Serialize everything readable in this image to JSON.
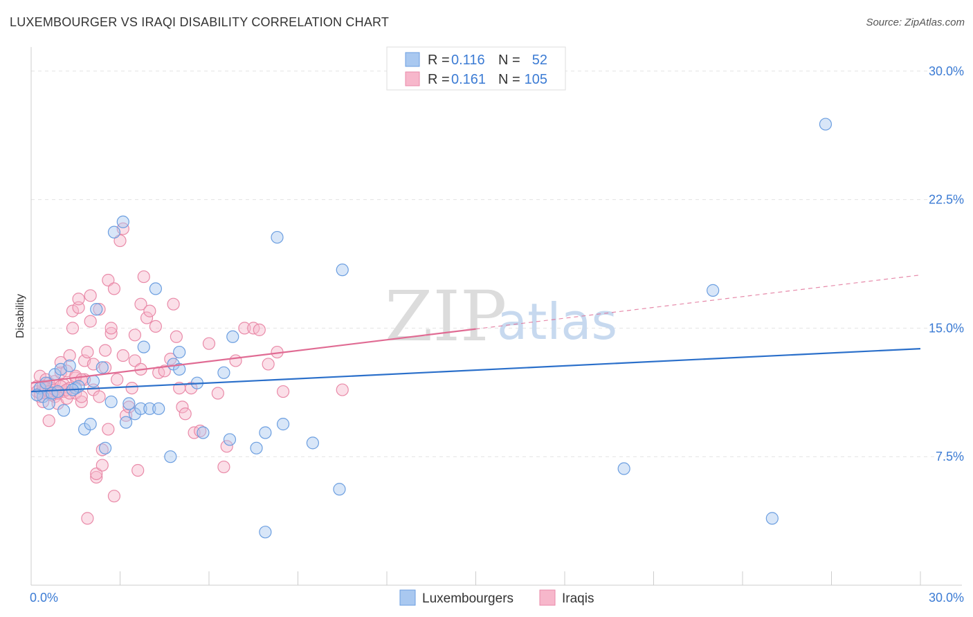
{
  "header": {
    "title": "LUXEMBOURGER VS IRAQI DISABILITY CORRELATION CHART",
    "source": "Source: ZipAtlas.com"
  },
  "colors": {
    "blue_fill": "#a9c8f0",
    "blue_stroke": "#6b9ee0",
    "blue_line": "#2a6fca",
    "pink_fill": "#f7b7cb",
    "pink_stroke": "#e98aa8",
    "pink_line": "#e06b93",
    "tick_text": "#3b7bd4"
  },
  "legend": {
    "r_label": "R =",
    "n_label": "N =",
    "rows": [
      {
        "r": "0.116",
        "n": "52"
      },
      {
        "r": "0.161",
        "n": "105"
      }
    ]
  },
  "watermark": {
    "zip": "ZIP",
    "atlas": "atlas"
  },
  "chart_data": {
    "type": "scatter",
    "ylabel": "Disability",
    "xlim": [
      0,
      30
    ],
    "ylim": [
      0,
      31
    ],
    "x_tick_labels": [
      "0.0%",
      "30.0%"
    ],
    "y_ticks": [
      {
        "value": 7.5,
        "label": "7.5%"
      },
      {
        "value": 15.0,
        "label": "15.0%"
      },
      {
        "value": 22.5,
        "label": "22.5%"
      },
      {
        "value": 30.0,
        "label": "30.0%"
      }
    ],
    "grid": true,
    "legend_position": "top-center",
    "series": [
      {
        "name": "Luxembourgers",
        "color": "#a9c8f0",
        "trend": {
          "x0": 0,
          "y0": 11.3,
          "x1": 30,
          "y1": 13.8,
          "dashed_from": null
        },
        "points": [
          [
            0.3,
            11.5
          ],
          [
            0.4,
            11.0
          ],
          [
            0.5,
            11.8
          ],
          [
            0.6,
            10.6
          ],
          [
            0.7,
            11.2
          ],
          [
            0.8,
            12.3
          ],
          [
            1.0,
            12.6
          ],
          [
            1.1,
            10.2
          ],
          [
            1.3,
            12.8
          ],
          [
            1.5,
            11.5
          ],
          [
            1.6,
            11.6
          ],
          [
            1.8,
            9.1
          ],
          [
            2.0,
            9.4
          ],
          [
            2.1,
            11.9
          ],
          [
            2.2,
            16.1
          ],
          [
            2.4,
            12.7
          ],
          [
            2.5,
            8.0
          ],
          [
            2.7,
            10.7
          ],
          [
            2.8,
            20.6
          ],
          [
            3.1,
            21.2
          ],
          [
            3.2,
            9.5
          ],
          [
            3.3,
            10.6
          ],
          [
            3.5,
            10.0
          ],
          [
            3.7,
            10.3
          ],
          [
            3.8,
            13.9
          ],
          [
            4.0,
            10.3
          ],
          [
            4.2,
            17.3
          ],
          [
            4.3,
            10.3
          ],
          [
            4.7,
            7.5
          ],
          [
            4.8,
            12.9
          ],
          [
            5.0,
            13.6
          ],
          [
            5.0,
            12.6
          ],
          [
            5.6,
            11.8
          ],
          [
            5.8,
            8.9
          ],
          [
            6.5,
            12.4
          ],
          [
            6.7,
            8.5
          ],
          [
            6.8,
            14.5
          ],
          [
            7.6,
            8.0
          ],
          [
            7.9,
            3.1
          ],
          [
            7.9,
            8.9
          ],
          [
            8.3,
            20.3
          ],
          [
            8.5,
            9.4
          ],
          [
            9.5,
            8.3
          ],
          [
            10.4,
            5.6
          ],
          [
            10.5,
            18.4
          ],
          [
            20.0,
            6.8
          ],
          [
            23.0,
            17.2
          ],
          [
            25.0,
            3.9
          ],
          [
            26.8,
            26.9
          ],
          [
            0.2,
            11.1
          ],
          [
            0.9,
            11.3
          ],
          [
            1.4,
            11.4
          ]
        ]
      },
      {
        "name": "Iraqis",
        "color": "#f7b7cb",
        "trend": {
          "x0": 0,
          "y0": 11.8,
          "x1": 30,
          "y1": 18.1,
          "dashed_from": 15.0
        },
        "points": [
          [
            0.2,
            11.6
          ],
          [
            0.3,
            12.2
          ],
          [
            0.3,
            11.0
          ],
          [
            0.4,
            11.4
          ],
          [
            0.4,
            10.7
          ],
          [
            0.5,
            12.0
          ],
          [
            0.5,
            11.2
          ],
          [
            0.6,
            11.8
          ],
          [
            0.6,
            9.6
          ],
          [
            0.7,
            11.1
          ],
          [
            0.7,
            11.5
          ],
          [
            0.8,
            11.9
          ],
          [
            0.8,
            11.0
          ],
          [
            0.9,
            11.3
          ],
          [
            0.9,
            10.6
          ],
          [
            1.0,
            12.4
          ],
          [
            1.0,
            13.0
          ],
          [
            1.1,
            11.3
          ],
          [
            1.1,
            11.7
          ],
          [
            1.2,
            10.9
          ],
          [
            1.2,
            12.5
          ],
          [
            1.3,
            13.4
          ],
          [
            1.3,
            11.5
          ],
          [
            1.4,
            16.0
          ],
          [
            1.4,
            15.0
          ],
          [
            1.5,
            11.2
          ],
          [
            1.5,
            12.1
          ],
          [
            1.6,
            16.2
          ],
          [
            1.6,
            16.7
          ],
          [
            1.7,
            10.7
          ],
          [
            1.7,
            11.0
          ],
          [
            1.8,
            13.1
          ],
          [
            1.8,
            12.0
          ],
          [
            1.9,
            13.6
          ],
          [
            1.9,
            3.9
          ],
          [
            2.0,
            15.4
          ],
          [
            2.0,
            16.9
          ],
          [
            2.1,
            12.9
          ],
          [
            2.1,
            11.4
          ],
          [
            2.2,
            6.3
          ],
          [
            2.2,
            6.5
          ],
          [
            2.3,
            16.1
          ],
          [
            2.3,
            11.0
          ],
          [
            2.4,
            7.9
          ],
          [
            2.4,
            7.0
          ],
          [
            2.5,
            12.7
          ],
          [
            2.5,
            13.7
          ],
          [
            2.6,
            9.1
          ],
          [
            2.6,
            17.8
          ],
          [
            2.7,
            14.7
          ],
          [
            2.7,
            15.0
          ],
          [
            2.8,
            5.2
          ],
          [
            2.8,
            17.3
          ],
          [
            2.9,
            12.0
          ],
          [
            3.0,
            20.1
          ],
          [
            3.1,
            20.8
          ],
          [
            3.1,
            13.4
          ],
          [
            3.2,
            9.9
          ],
          [
            3.3,
            10.4
          ],
          [
            3.4,
            11.5
          ],
          [
            3.5,
            13.1
          ],
          [
            3.5,
            14.6
          ],
          [
            3.6,
            6.7
          ],
          [
            3.7,
            16.4
          ],
          [
            3.7,
            12.6
          ],
          [
            3.8,
            18.0
          ],
          [
            3.9,
            15.6
          ],
          [
            4.0,
            16.0
          ],
          [
            4.2,
            15.1
          ],
          [
            4.3,
            12.4
          ],
          [
            4.5,
            12.5
          ],
          [
            4.7,
            13.2
          ],
          [
            4.8,
            16.4
          ],
          [
            4.9,
            14.5
          ],
          [
            5.0,
            11.5
          ],
          [
            5.1,
            10.4
          ],
          [
            5.2,
            10.0
          ],
          [
            5.4,
            11.5
          ],
          [
            5.5,
            8.9
          ],
          [
            5.7,
            9.0
          ],
          [
            6.0,
            14.1
          ],
          [
            6.3,
            11.2
          ],
          [
            6.5,
            6.9
          ],
          [
            6.6,
            8.1
          ],
          [
            6.9,
            13.1
          ],
          [
            7.2,
            15.0
          ],
          [
            7.5,
            15.0
          ],
          [
            7.7,
            14.9
          ],
          [
            8.0,
            12.9
          ],
          [
            8.3,
            13.6
          ],
          [
            8.5,
            11.3
          ],
          [
            10.5,
            11.4
          ],
          [
            0.2,
            11.3
          ],
          [
            0.3,
            11.2
          ],
          [
            0.4,
            11.6
          ],
          [
            0.5,
            11.5
          ],
          [
            0.6,
            11.3
          ],
          [
            0.7,
            11.1
          ],
          [
            0.8,
            11.4
          ],
          [
            0.9,
            11.2
          ],
          [
            1.0,
            11.6
          ],
          [
            1.2,
            11.4
          ],
          [
            1.3,
            11.2
          ],
          [
            1.5,
            12.2
          ],
          [
            1.7,
            12.0
          ]
        ]
      }
    ]
  }
}
